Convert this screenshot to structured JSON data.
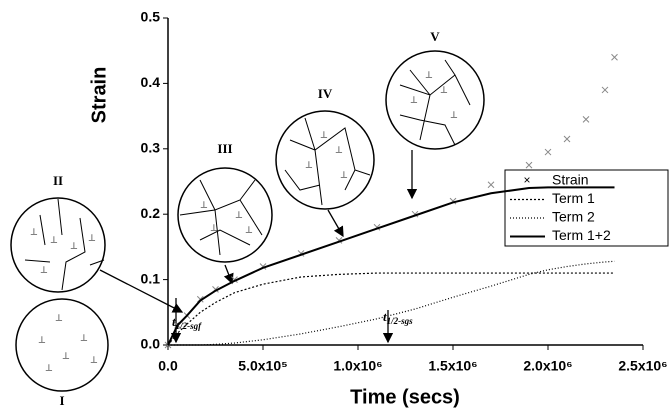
{
  "chart_data": {
    "type": "line",
    "xlabel": "Time (secs)",
    "ylabel": "Strain",
    "x": [
      0,
      50000,
      100000,
      170000,
      250000,
      350000,
      500000,
      700000,
      900000,
      1100000,
      1300000,
      1500000,
      1700000,
      1900000,
      2000000,
      2100000,
      2200000,
      2300000,
      2350000
    ],
    "series": [
      {
        "name": "Strain",
        "color": "#888888",
        "marker": "x",
        "values": [
          0,
          0.03,
          0.045,
          0.07,
          0.085,
          0.1,
          0.12,
          0.14,
          0.16,
          0.18,
          0.2,
          0.22,
          0.245,
          0.275,
          0.295,
          0.315,
          0.345,
          0.39,
          0.44
        ]
      },
      {
        "name": "Term 1",
        "color": "#000000",
        "dash": "2,2",
        "values": [
          0,
          0.018,
          0.032,
          0.05,
          0.065,
          0.08,
          0.093,
          0.104,
          0.108,
          0.11,
          0.11,
          0.11,
          0.11,
          0.11,
          0.11,
          0.11,
          0.11,
          0.11,
          0.11
        ]
      },
      {
        "name": "Term 2",
        "color": "#000000",
        "dash": "1,2",
        "values": [
          0,
          0,
          0,
          0,
          0.001,
          0.003,
          0.008,
          0.017,
          0.028,
          0.04,
          0.055,
          0.073,
          0.09,
          0.108,
          0.115,
          0.12,
          0.124,
          0.127,
          0.128
        ]
      },
      {
        "name": "Term 1+2",
        "color": "#000000",
        "dash": "none",
        "values": [
          0,
          0.03,
          0.045,
          0.068,
          0.083,
          0.098,
          0.118,
          0.138,
          0.158,
          0.178,
          0.198,
          0.218,
          0.232,
          0.24,
          0.241,
          0.241,
          0.241,
          0.241,
          0.241
        ]
      }
    ],
    "xlim": [
      0,
      2500000
    ],
    "xticks": [
      {
        "value": 0,
        "label": "0.0"
      },
      {
        "value": 500000,
        "label": "5.0x10⁵"
      },
      {
        "value": 1000000,
        "label": "1.0x10⁶"
      },
      {
        "value": 1500000,
        "label": "1.5x10⁶"
      },
      {
        "value": 2000000,
        "label": "2.0x10⁶"
      },
      {
        "value": 2500000,
        "label": "2.5x10⁶"
      }
    ],
    "ylim": [
      0,
      0.5
    ],
    "yticks": [
      {
        "value": 0,
        "label": "0.0"
      },
      0.1,
      0.2,
      0.3,
      0.4,
      0.5
    ],
    "legend": "right",
    "stages": [
      "I",
      "II",
      "III",
      "IV",
      "V"
    ],
    "annotations": [
      {
        "text": "t",
        "sub": "1/2-sgf"
      },
      {
        "text": "t",
        "sub": "1/2-sgs"
      }
    ]
  }
}
